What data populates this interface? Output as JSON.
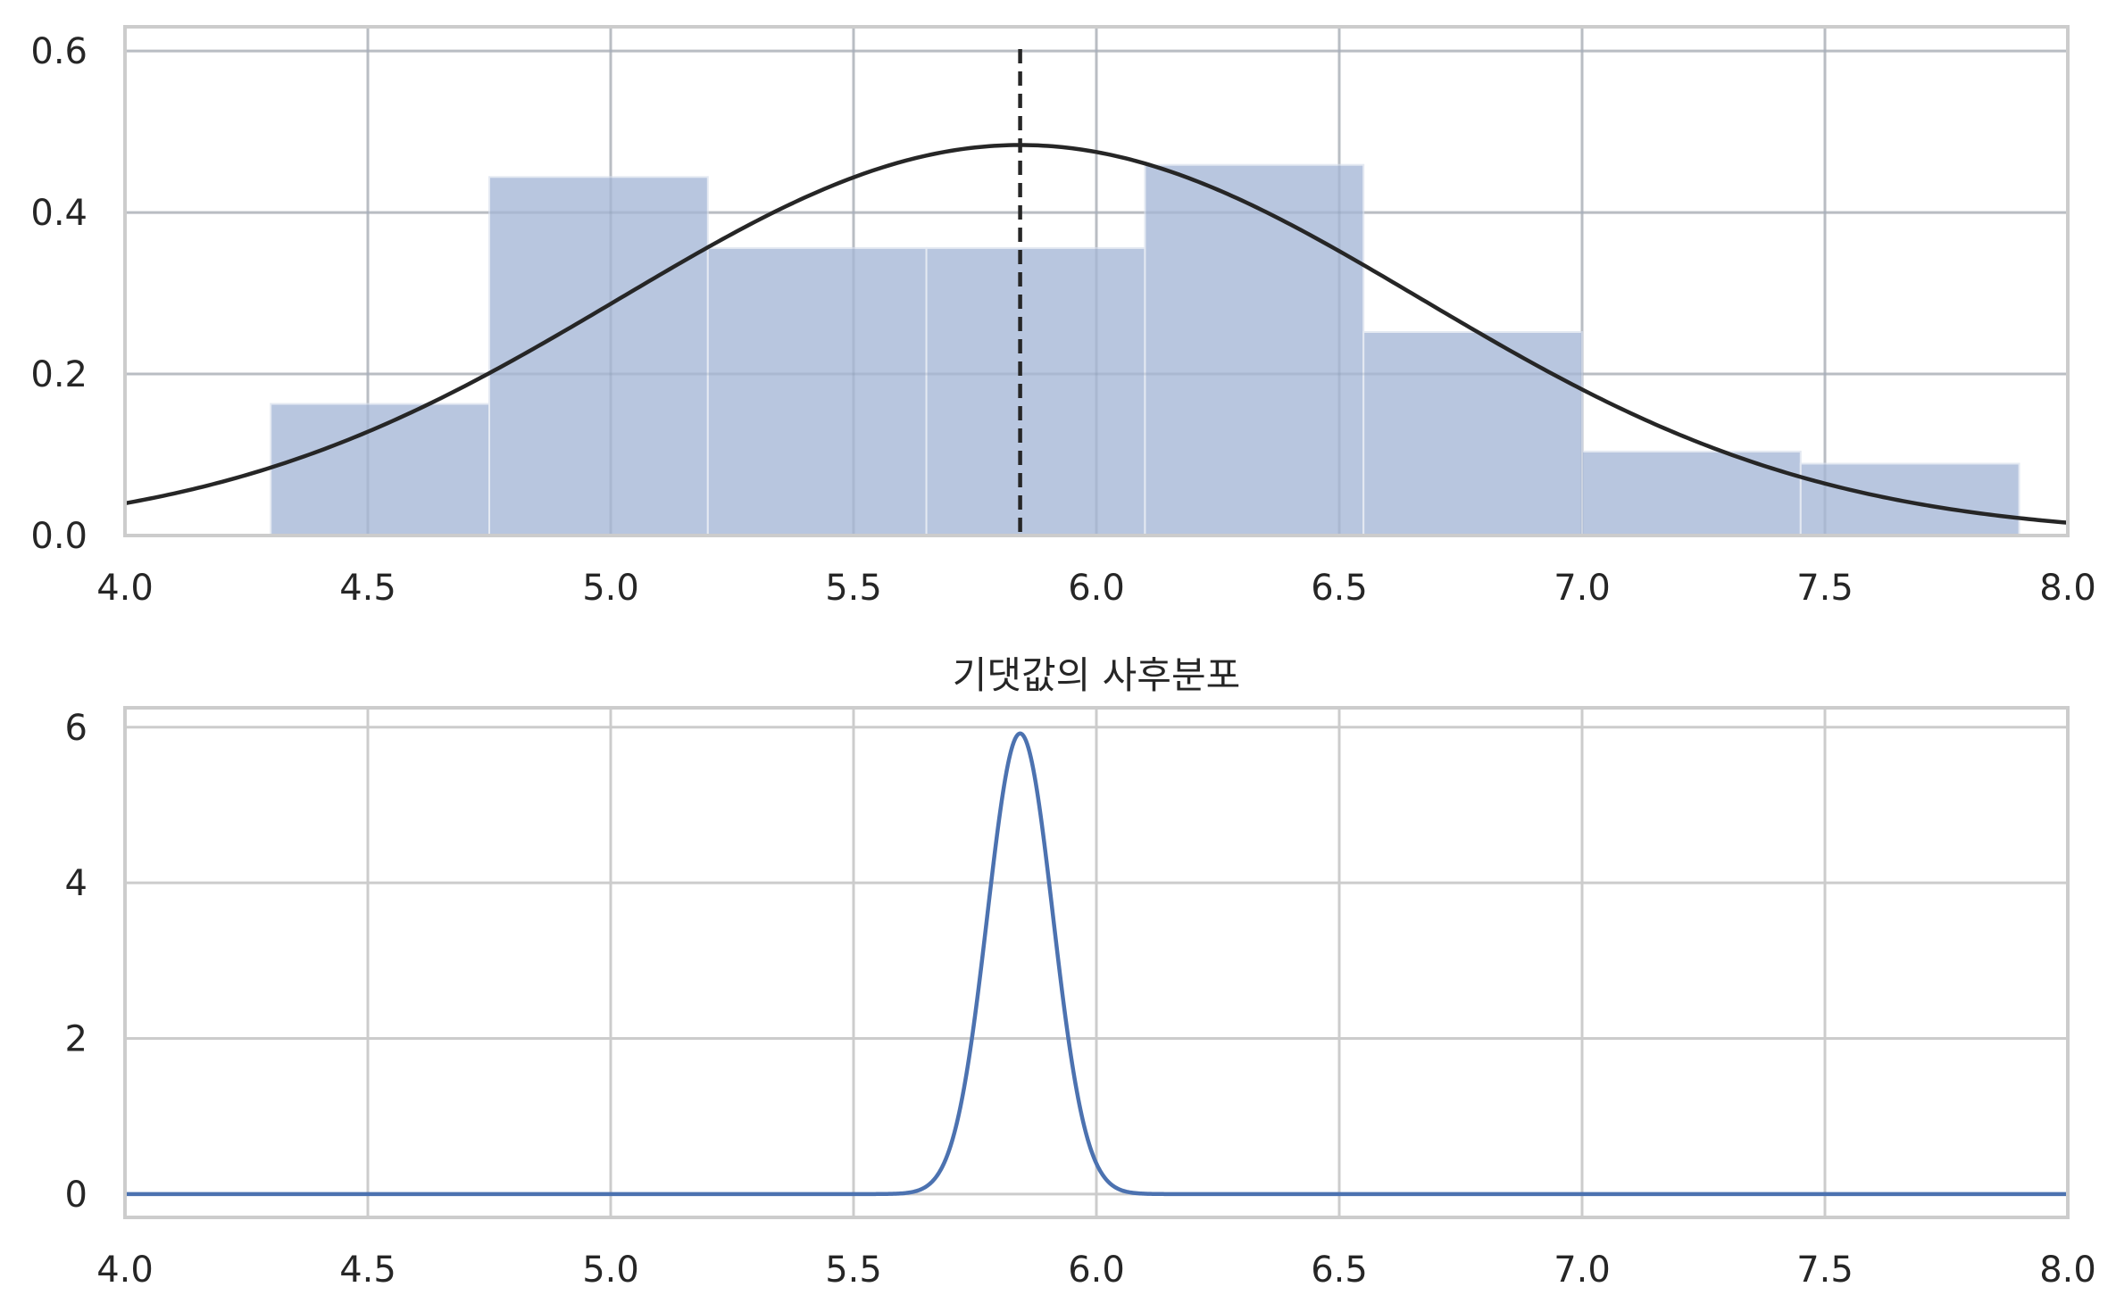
{
  "chart_data": [
    {
      "type": "bar",
      "title": "",
      "xlabel": "",
      "ylabel": "",
      "xlim": [
        4.0,
        8.0
      ],
      "ylim": [
        0.0,
        0.63
      ],
      "grid": true,
      "xticks": [
        "4.0",
        "4.5",
        "5.0",
        "5.5",
        "6.0",
        "6.5",
        "7.0",
        "7.5",
        "8.0"
      ],
      "yticks": [
        "0.0",
        "0.2",
        "0.4",
        "0.6"
      ],
      "histogram": {
        "bin_edges": [
          4.3,
          4.75,
          5.2,
          5.65,
          6.1,
          6.55,
          7.0,
          7.45,
          7.9
        ],
        "values": [
          0.163,
          0.444,
          0.356,
          0.356,
          0.459,
          0.252,
          0.104,
          0.089
        ],
        "color": "#b8c6df"
      },
      "normal_curve": {
        "mean": 5.843,
        "std": 0.825,
        "x_range": [
          4.0,
          8.0
        ],
        "color": "#262626"
      },
      "mean_line": {
        "x": 5.843,
        "style": "dashed",
        "color": "#262626"
      }
    },
    {
      "type": "line",
      "title": "기댓값의 사후분포",
      "xlabel": "",
      "ylabel": "",
      "xlim": [
        4.0,
        8.0
      ],
      "ylim": [
        -0.3,
        6.25
      ],
      "grid": true,
      "xticks": [
        "4.0",
        "4.5",
        "5.0",
        "5.5",
        "6.0",
        "6.5",
        "7.0",
        "7.5",
        "8.0"
      ],
      "yticks": [
        "0",
        "2",
        "4",
        "6"
      ],
      "curve": {
        "distribution": "normal",
        "mean": 5.843,
        "std": 0.0674,
        "peak": 5.92,
        "x_range": [
          4.0,
          8.0
        ],
        "color": "#4c72b0"
      }
    }
  ]
}
